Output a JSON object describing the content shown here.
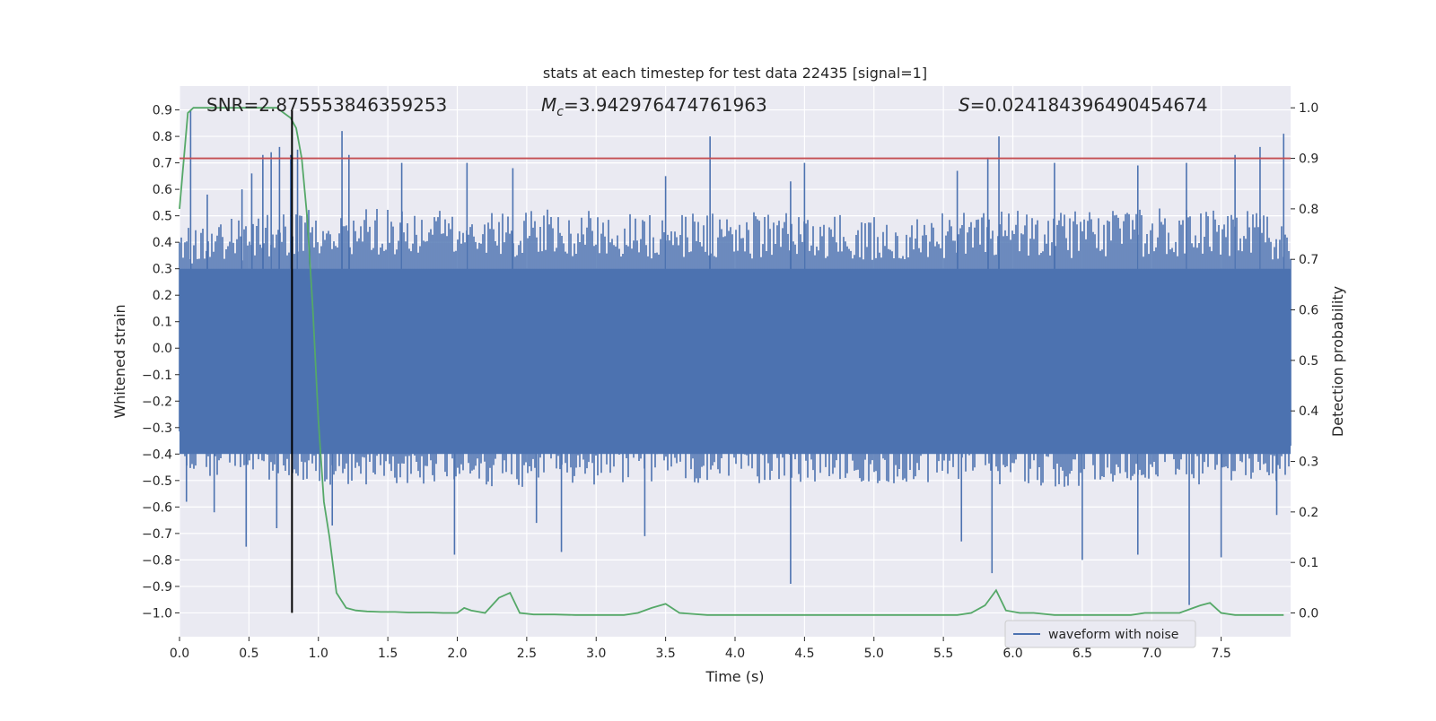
{
  "chart_data": {
    "type": "line",
    "title": "stats at each timestep for test data 22435 [signal=1]",
    "xlabel": "Time (s)",
    "ylabel": "Whitened strain",
    "y2label": "Detection probability",
    "xlim": [
      0.0,
      8.0
    ],
    "ylim": [
      -1.09,
      0.99
    ],
    "y2lim": [
      -0.047,
      1.043
    ],
    "grid": true,
    "legend_position": "lower-right",
    "x_ticks": [
      "0.0",
      "0.5",
      "1.0",
      "1.5",
      "2.0",
      "2.5",
      "3.0",
      "3.5",
      "4.0",
      "4.5",
      "5.0",
      "5.5",
      "6.0",
      "6.5",
      "7.0",
      "7.5"
    ],
    "y_ticks": [
      "0.9",
      "0.8",
      "0.7",
      "0.6",
      "0.5",
      "0.4",
      "0.3",
      "0.2",
      "0.1",
      "0.0",
      "−0.1",
      "−0.2",
      "−0.3",
      "−0.4",
      "−0.5",
      "−0.6",
      "−0.7",
      "−0.8",
      "−0.9",
      "−1.0"
    ],
    "y2_ticks": [
      "1.0",
      "0.9",
      "0.8",
      "0.7",
      "0.6",
      "0.5",
      "0.4",
      "0.3",
      "0.2",
      "0.1",
      "0.0"
    ],
    "annotations": {
      "snr": "SNR=2.875553846359253",
      "mc_symbol": "M",
      "mc_sub": "c",
      "mc_value": "=3.942976474761963",
      "s_symbol": "S",
      "s_value": "=0.024184396490454674"
    },
    "series": [
      {
        "name": "waveform with noise",
        "axis": "left",
        "color": "#4c72b0",
        "envelope": {
          "x": [
            0.0,
            0.5,
            1.0,
            1.5,
            2.0,
            2.5,
            3.0,
            3.5,
            4.0,
            4.5,
            5.0,
            5.5,
            6.0,
            6.5,
            7.0,
            7.5,
            8.0
          ],
          "upper": [
            0.43,
            0.45,
            0.48,
            0.48,
            0.47,
            0.48,
            0.47,
            0.46,
            0.47,
            0.47,
            0.46,
            0.47,
            0.48,
            0.47,
            0.48,
            0.48,
            0.46
          ],
          "lower": [
            -0.43,
            -0.45,
            -0.47,
            -0.47,
            -0.47,
            -0.48,
            -0.47,
            -0.46,
            -0.47,
            -0.46,
            -0.47,
            -0.46,
            -0.47,
            -0.48,
            -0.47,
            -0.47,
            -0.46
          ],
          "core_upper": 0.3,
          "core_lower": -0.4
        },
        "spikes": {
          "x": [
            0.08,
            0.2,
            0.45,
            0.52,
            0.6,
            0.66,
            0.72,
            0.8,
            0.85,
            1.17,
            1.22,
            1.6,
            2.07,
            2.4,
            3.5,
            3.82,
            4.4,
            4.5,
            5.6,
            5.82,
            5.9,
            6.3,
            6.9,
            7.25,
            7.6,
            7.78,
            7.95
          ],
          "y": [
            0.9,
            0.58,
            0.6,
            0.66,
            0.73,
            0.74,
            0.76,
            0.73,
            0.75,
            0.82,
            0.73,
            0.7,
            0.7,
            0.68,
            0.65,
            0.8,
            0.63,
            0.7,
            0.67,
            0.72,
            0.8,
            0.7,
            0.69,
            0.7,
            0.73,
            0.76,
            0.81
          ],
          "x_low": [
            0.05,
            0.25,
            0.48,
            0.7,
            1.1,
            1.98,
            2.57,
            2.75,
            3.35,
            4.4,
            5.63,
            5.85,
            6.5,
            6.9,
            7.27,
            7.5,
            7.9
          ],
          "y_low": [
            -0.58,
            -0.62,
            -0.75,
            -0.68,
            -0.67,
            -0.78,
            -0.66,
            -0.77,
            -0.71,
            -0.89,
            -0.73,
            -0.85,
            -0.8,
            -0.78,
            -0.97,
            -0.79,
            -0.63
          ]
        }
      },
      {
        "name": "detection probability",
        "axis": "right",
        "color": "#55a868",
        "x": [
          0.0,
          0.06,
          0.1,
          0.2,
          0.3,
          0.4,
          0.5,
          0.6,
          0.7,
          0.75,
          0.8,
          0.84,
          0.88,
          0.92,
          0.96,
          1.0,
          1.04,
          1.08,
          1.13,
          1.2,
          1.27,
          1.35,
          1.45,
          1.55,
          1.65,
          1.8,
          1.9,
          2.0,
          2.05,
          2.1,
          2.2,
          2.3,
          2.38,
          2.45,
          2.55,
          2.7,
          2.85,
          3.0,
          3.2,
          3.3,
          3.4,
          3.5,
          3.6,
          3.8,
          4.0,
          4.2,
          4.4,
          4.6,
          4.8,
          5.0,
          5.2,
          5.4,
          5.6,
          5.7,
          5.8,
          5.88,
          5.95,
          6.05,
          6.15,
          6.3,
          6.5,
          6.7,
          6.85,
          6.95,
          7.1,
          7.2,
          7.3,
          7.35,
          7.42,
          7.5,
          7.6,
          7.7,
          7.8,
          7.95
        ],
        "y": [
          0.8,
          0.99,
          1.0,
          1.0,
          1.0,
          1.0,
          1.0,
          1.0,
          1.0,
          0.99,
          0.98,
          0.96,
          0.9,
          0.78,
          0.6,
          0.38,
          0.22,
          0.15,
          0.04,
          0.01,
          0.005,
          0.003,
          0.002,
          0.002,
          0.001,
          0.001,
          0.0,
          0.0,
          0.01,
          0.005,
          0.0,
          0.03,
          0.04,
          0.0,
          -0.003,
          -0.003,
          -0.004,
          -0.004,
          -0.004,
          0.0,
          0.01,
          0.018,
          0.0,
          -0.004,
          -0.004,
          -0.004,
          -0.004,
          -0.004,
          -0.004,
          -0.004,
          -0.004,
          -0.004,
          -0.004,
          0.0,
          0.015,
          0.045,
          0.005,
          0.0,
          0.0,
          -0.004,
          -0.004,
          -0.004,
          -0.004,
          0.0,
          0.0,
          0.0,
          0.01,
          0.015,
          0.02,
          0.0,
          -0.004,
          -0.004,
          -0.004,
          -0.004
        ]
      }
    ],
    "threshold": {
      "axis": "right",
      "value": 0.9,
      "color": "#c44e52"
    },
    "marker": {
      "x": 0.81,
      "color": "#000000"
    }
  },
  "legend": {
    "label": "waveform with noise"
  }
}
